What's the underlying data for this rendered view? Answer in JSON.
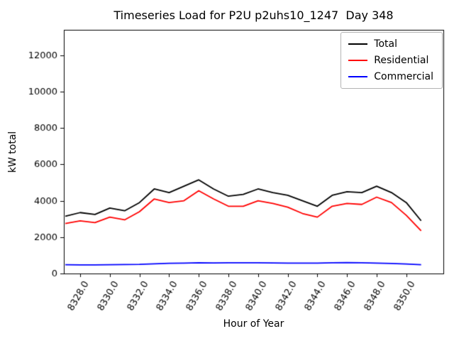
{
  "chart_data": {
    "type": "line",
    "title": "Timeseries Load for P2U p2uhs10_1247  Day 348",
    "xlabel": "Hour of Year",
    "ylabel": "kW total",
    "xlim": [
      8326.9,
      8352.5
    ],
    "ylim": [
      0,
      13400
    ],
    "yticks": [
      0,
      2000,
      4000,
      6000,
      8000,
      10000,
      12000
    ],
    "xticks": [
      8328,
      8330,
      8332,
      8334,
      8336,
      8338,
      8340,
      8342,
      8344,
      8346,
      8348,
      8350
    ],
    "xtick_labels": [
      "8328.0",
      "8330.0",
      "8332.0",
      "8334.0",
      "8336.0",
      "8338.0",
      "8340.0",
      "8342.0",
      "8344.0",
      "8346.0",
      "8348.0",
      "8350.0"
    ],
    "xtick_rotation": 60,
    "grid": false,
    "legend_position": "upper right",
    "x": [
      8327,
      8328,
      8329,
      8330,
      8331,
      8332,
      8333,
      8334,
      8335,
      8336,
      8337,
      8338,
      8339,
      8340,
      8341,
      8342,
      8343,
      8344,
      8345,
      8346,
      8347,
      8348,
      8349,
      8350,
      8351
    ],
    "series": [
      {
        "name": "Total",
        "color": "#000000",
        "values": [
          3150,
          3350,
          3250,
          3600,
          3450,
          3900,
          4650,
          4450,
          4800,
          5150,
          4650,
          4250,
          4350,
          4650,
          4450,
          4300,
          4000,
          3700,
          4300,
          4500,
          4450,
          4800,
          4450,
          3900,
          2900
        ]
      },
      {
        "name": "Residential",
        "color": "#ff0000",
        "values": [
          2750,
          2900,
          2800,
          3100,
          2950,
          3400,
          4100,
          3900,
          4000,
          4550,
          4100,
          3700,
          3700,
          4000,
          3850,
          3650,
          3300,
          3100,
          3700,
          3850,
          3800,
          4200,
          3900,
          3200,
          2350
        ]
      },
      {
        "name": "Commercial",
        "color": "#0000ff",
        "values": [
          480,
          470,
          470,
          480,
          490,
          500,
          530,
          560,
          570,
          590,
          580,
          590,
          590,
          590,
          580,
          570,
          570,
          570,
          590,
          600,
          590,
          570,
          550,
          520,
          480
        ]
      }
    ]
  }
}
